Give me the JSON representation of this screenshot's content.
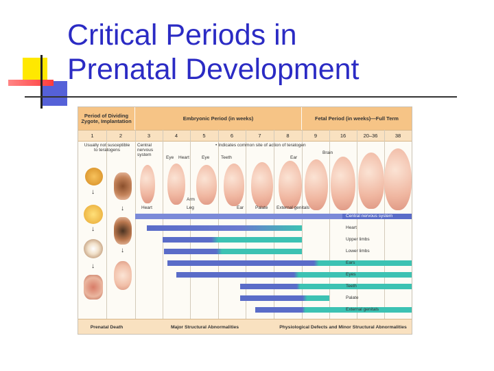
{
  "slide": {
    "title_line1": "Critical Periods in",
    "title_line2": "Prenatal Development"
  },
  "figure": {
    "header_periods": "Period of Dividing Zygote, Implantation",
    "header_embryonic": "Embryonic Period (in weeks)",
    "header_fetal": "Fetal Period (in weeks)—Full Term",
    "weeks": [
      "1",
      "2",
      "3",
      "4",
      "5",
      "6",
      "7",
      "8",
      "9",
      "16",
      "20–36",
      "38"
    ],
    "usually_not_susceptible": "Usually not susceptible to teratogens",
    "central_nervous_system": "Central nervous system",
    "legend_note": "• Indicates common site of action of teratogen",
    "organ_labels": {
      "eye": "Eye",
      "heart": "Heart",
      "eye2": "Eye",
      "teeth": "Teeth",
      "ear": "Ear",
      "brain": "Brain",
      "arm": "Arm",
      "leg": "Leg",
      "heart_bottom": "Heart",
      "ear_bottom": "Ear",
      "palate": "Palate",
      "external_genitals": "External genitals"
    },
    "bars": [
      "Central nervous system",
      "Heart",
      "Upper limbs",
      "Lower limbs",
      "Ears",
      "Eyes",
      "Teeth",
      "Palate",
      "External genitals"
    ],
    "footer_prenatal_death": "Prenatal Death",
    "footer_major": "Major Structural Abnormalities",
    "footer_minor": "Physiological Defects and Minor Structural Abnormalities",
    "colors": {
      "blue": "#5a6cc8",
      "teal": "#3cc2b3",
      "header": "#f6c486",
      "title": "#2b2bc4"
    }
  }
}
